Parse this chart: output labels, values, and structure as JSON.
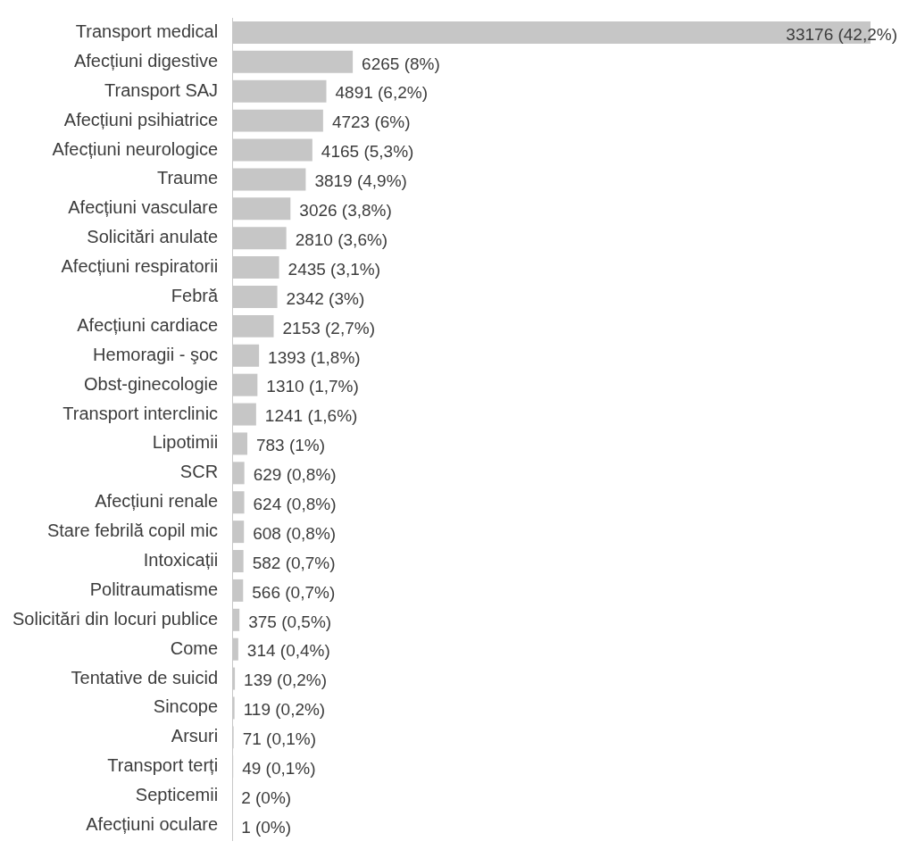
{
  "chart_data": {
    "type": "bar",
    "orientation": "horizontal",
    "categories": [
      "Transport medical",
      "Afecțiuni digestive",
      "Transport SAJ",
      "Afecțiuni psihiatrice",
      "Afecțiuni neurologice",
      "Traume",
      "Afecțiuni vasculare",
      "Solicitări anulate",
      "Afecțiuni respiratorii",
      "Febră",
      "Afecțiuni cardiace",
      "Hemoragii - şoc",
      "Obst-ginecologie",
      "Transport interclinic",
      "Lipotimii",
      "SCR",
      "Afecțiuni renale",
      "Stare febrilă copil mic",
      "Intoxicații",
      "Politraumatisme",
      "Solicitări din locuri publice",
      "Come",
      "Tentative de suicid",
      "Sincope",
      "Arsuri",
      "Transport terți",
      "Septicemii",
      "Afecțiuni oculare"
    ],
    "values": [
      33176,
      6265,
      4891,
      4723,
      4165,
      3819,
      3026,
      2810,
      2435,
      2342,
      2153,
      1393,
      1310,
      1241,
      783,
      629,
      624,
      608,
      582,
      566,
      375,
      314,
      139,
      119,
      71,
      49,
      2,
      1
    ],
    "value_labels": [
      "33176 (42,2%)",
      "6265 (8%)",
      "4891 (6,2%)",
      "4723 (6%)",
      "4165 (5,3%)",
      "3819 (4,9%)",
      "3026 (3,8%)",
      "2810 (3,6%)",
      "2435 (3,1%)",
      "2342 (3%)",
      "2153 (2,7%)",
      "1393 (1,8%)",
      "1310 (1,7%)",
      "1241 (1,6%)",
      "783 (1%)",
      "629 (0,8%)",
      "624 (0,8%)",
      "608 (0,8%)",
      "582 (0,7%)",
      "566 (0,7%)",
      "375 (0,5%)",
      "314 (0,4%)",
      "139 (0,2%)",
      "119 (0,2%)",
      "71 (0,1%)",
      "49 (0,1%)",
      "2 (0%)",
      "1 (0%)"
    ],
    "color": "#c6c6c6",
    "tick_labels": "y"
  }
}
